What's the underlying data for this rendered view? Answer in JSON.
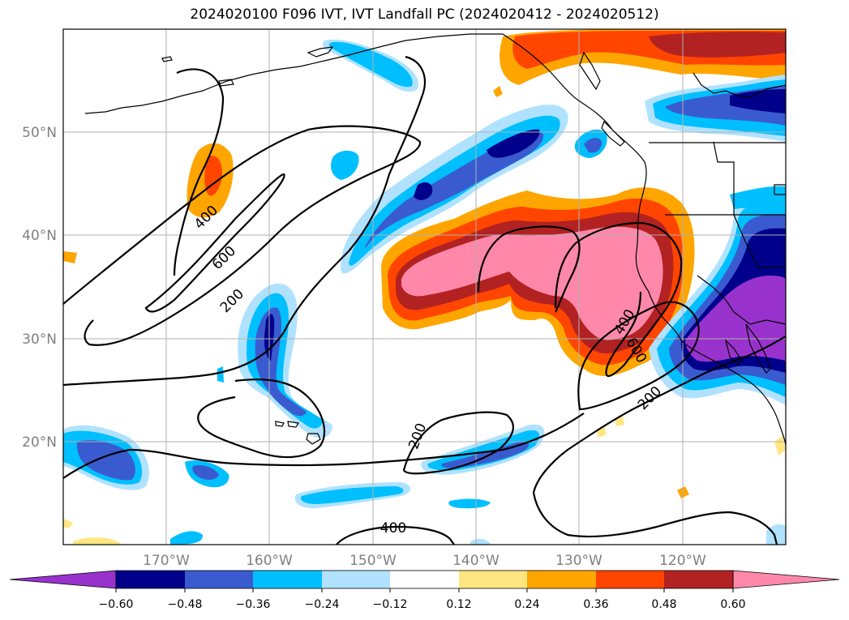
{
  "title": "2024020100 F096 IVT, IVT Landfall PC (2024020412 - 2024020512)",
  "map": {
    "lat_labels": [
      "50°N",
      "40°N",
      "30°N",
      "20°N"
    ],
    "lon_labels": [
      "170°W",
      "160°W",
      "150°W",
      "140°W",
      "130°W",
      "120°W"
    ],
    "contour_levels": [
      "400",
      "600",
      "200",
      "400",
      "600",
      "200",
      "200",
      "400"
    ]
  },
  "colorbar": {
    "ticks": [
      "−0.60",
      "−0.48",
      "−0.36",
      "−0.24",
      "−0.12",
      "0.12",
      "0.24",
      "0.36",
      "0.48",
      "0.60"
    ],
    "colors": [
      "#9932cc",
      "#00008b",
      "#3a5bd0",
      "#00bfff",
      "#b0e2ff",
      "#ffffff",
      "#ffe680",
      "#ffa500",
      "#ff4500",
      "#b22222",
      "#ff88aa",
      "#ff88aa"
    ]
  }
}
